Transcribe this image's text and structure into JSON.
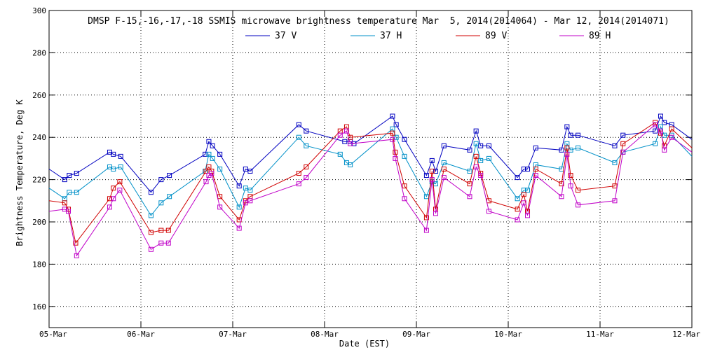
{
  "chart_data": {
    "type": "line",
    "title": "DMSP F-15,-16,-17,-18 SSMIS microwave brightness temperature Mar  5, 2014(2014064) - Mar 12, 2014(2014071)",
    "xlabel": "Date (EST)",
    "ylabel": "Brightness Temperature, Deg K",
    "xlim": [
      0,
      7
    ],
    "ylim": [
      150,
      300
    ],
    "yticks": [
      160,
      180,
      200,
      220,
      240,
      260,
      280,
      300
    ],
    "xticks": [
      0,
      1,
      2,
      3,
      4,
      5,
      6,
      7
    ],
    "xtick_labels": [
      "05-Mar",
      "06-Mar",
      "07-Mar",
      "08-Mar",
      "09-Mar",
      "10-Mar",
      "11-Mar",
      "12-Mar"
    ],
    "grid": true,
    "legend": "top",
    "series": [
      {
        "name": "37 V",
        "color": "#0000c0",
        "x": [
          0.0,
          0.17,
          0.22,
          0.3,
          0.66,
          0.7,
          0.78,
          1.11,
          1.22,
          1.31,
          1.7,
          1.74,
          1.78,
          1.86,
          2.07,
          2.14,
          2.19,
          2.72,
          2.8,
          3.22,
          3.28,
          3.32,
          3.74,
          3.78,
          3.87,
          4.11,
          4.17,
          4.21,
          4.3,
          4.58,
          4.65,
          4.7,
          4.79,
          5.1,
          5.17,
          5.21,
          5.3,
          5.58,
          5.64,
          5.68,
          5.76,
          6.16,
          6.25,
          6.6,
          6.66,
          6.7,
          6.78,
          7.0
        ],
        "y": [
          225,
          220,
          222,
          223,
          233,
          232,
          231,
          214,
          220,
          222,
          232,
          238,
          236,
          232,
          217,
          225,
          224,
          246,
          243,
          238,
          238,
          237,
          250,
          246,
          239,
          222,
          229,
          224,
          236,
          234,
          243,
          236,
          236,
          221,
          225,
          225,
          235,
          234,
          245,
          241,
          241,
          236,
          241,
          243,
          250,
          247,
          246,
          239
        ]
      },
      {
        "name": "37 H",
        "color": "#0090c8",
        "x": [
          0.0,
          0.17,
          0.22,
          0.3,
          0.66,
          0.7,
          0.78,
          1.11,
          1.22,
          1.31,
          1.7,
          1.74,
          1.78,
          1.86,
          2.07,
          2.14,
          2.19,
          2.72,
          2.8,
          3.17,
          3.24,
          3.28,
          3.74,
          3.78,
          3.87,
          4.11,
          4.17,
          4.21,
          4.3,
          4.58,
          4.65,
          4.7,
          4.79,
          5.1,
          5.17,
          5.21,
          5.3,
          5.58,
          5.64,
          5.68,
          5.76,
          6.16,
          6.25,
          6.6,
          6.66,
          6.7,
          6.78,
          7.0
        ],
        "y": [
          216,
          211,
          214,
          214,
          226,
          225,
          226,
          203,
          209,
          212,
          224,
          232,
          230,
          225,
          207,
          216,
          215,
          240,
          236,
          232,
          228,
          227,
          244,
          240,
          231,
          212,
          219,
          218,
          228,
          224,
          237,
          229,
          230,
          211,
          215,
          215,
          227,
          225,
          237,
          234,
          235,
          228,
          233,
          237,
          245,
          241,
          241,
          231
        ]
      },
      {
        "name": "89 V",
        "color": "#d00000",
        "x": [
          0.0,
          0.17,
          0.21,
          0.29,
          0.66,
          0.7,
          0.77,
          1.11,
          1.22,
          1.3,
          1.71,
          1.74,
          1.77,
          1.86,
          2.07,
          2.14,
          2.19,
          2.72,
          2.8,
          3.17,
          3.24,
          3.28,
          3.74,
          3.77,
          3.87,
          4.11,
          4.17,
          4.21,
          4.3,
          4.58,
          4.65,
          4.7,
          4.79,
          5.1,
          5.17,
          5.21,
          5.3,
          5.58,
          5.64,
          5.68,
          5.76,
          6.16,
          6.25,
          6.6,
          6.66,
          6.7,
          6.78,
          7.0
        ],
        "y": [
          210,
          209,
          206,
          190,
          211,
          216,
          219,
          195,
          196,
          196,
          224,
          226,
          224,
          212,
          201,
          210,
          212,
          223,
          226,
          243,
          245,
          240,
          242,
          233,
          217,
          202,
          224,
          206,
          225,
          218,
          231,
          223,
          210,
          206,
          213,
          205,
          225,
          218,
          235,
          222,
          215,
          217,
          237,
          247,
          242,
          236,
          244,
          235
        ]
      },
      {
        "name": "89 H",
        "color": "#c000c8",
        "x": [
          0.0,
          0.17,
          0.21,
          0.3,
          0.66,
          0.7,
          0.77,
          1.11,
          1.22,
          1.3,
          1.71,
          1.74,
          1.77,
          1.86,
          2.07,
          2.14,
          2.19,
          2.72,
          2.8,
          3.17,
          3.24,
          3.28,
          3.74,
          3.77,
          3.87,
          4.11,
          4.17,
          4.21,
          4.3,
          4.58,
          4.65,
          4.7,
          4.79,
          5.1,
          5.17,
          5.21,
          5.3,
          5.58,
          5.64,
          5.68,
          5.76,
          6.16,
          6.25,
          6.6,
          6.66,
          6.7,
          6.78,
          7.0
        ],
        "y": [
          205,
          206,
          205,
          184,
          207,
          211,
          215,
          187,
          190,
          190,
          219,
          222,
          223,
          207,
          197,
          209,
          210,
          218,
          221,
          241,
          243,
          237,
          239,
          230,
          211,
          196,
          220,
          204,
          221,
          212,
          226,
          222,
          205,
          201,
          209,
          203,
          222,
          212,
          232,
          217,
          208,
          210,
          233,
          246,
          243,
          234,
          240,
          233
        ]
      }
    ]
  }
}
